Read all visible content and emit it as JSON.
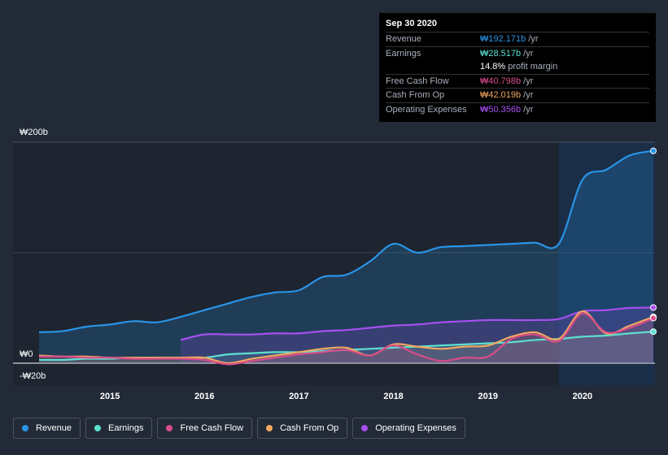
{
  "tooltip": {
    "date": "Sep 30 2020",
    "rows": [
      {
        "label": "Revenue",
        "value": "₩192.171b",
        "unit": "/yr",
        "color": "#2a94e6"
      },
      {
        "label": "Earnings",
        "value": "₩28.517b",
        "unit": "/yr",
        "color": "#5ce0d0"
      },
      {
        "label": "",
        "value": "14.8%",
        "unit": "profit margin",
        "color": "#ffffff"
      },
      {
        "label": "Free Cash Flow",
        "value": "₩40.798b",
        "unit": "/yr",
        "color": "#d94c8a"
      },
      {
        "label": "Cash From Op",
        "value": "₩42.019b",
        "unit": "/yr",
        "color": "#f0a860"
      },
      {
        "label": "Operating Expenses",
        "value": "₩50.356b",
        "unit": "/yr",
        "color": "#a64ff0"
      }
    ]
  },
  "legend": [
    {
      "label": "Revenue",
      "color": "#2a94e6"
    },
    {
      "label": "Earnings",
      "color": "#5ce0d0"
    },
    {
      "label": "Free Cash Flow",
      "color": "#d94c8a"
    },
    {
      "label": "Cash From Op",
      "color": "#f0a860"
    },
    {
      "label": "Operating Expenses",
      "color": "#a64ff0"
    }
  ],
  "chart_data": {
    "type": "line",
    "ylabels": {
      "top": "₩200b",
      "zero": "₩0",
      "bottom": "-₩20b"
    },
    "ylim": [
      -20,
      200
    ],
    "xlim": [
      2014.25,
      2020.75
    ],
    "xticks": [
      2015,
      2016,
      2017,
      2018,
      2019,
      2020
    ],
    "xtick_labels": [
      "2015",
      "2016",
      "2017",
      "2018",
      "2019",
      "2020"
    ],
    "highlight_start": 2019.75,
    "series": [
      {
        "name": "Revenue",
        "color": "#2a94e6",
        "points": [
          [
            2014.25,
            28
          ],
          [
            2014.5,
            29
          ],
          [
            2014.75,
            33
          ],
          [
            2015.0,
            35
          ],
          [
            2015.25,
            38
          ],
          [
            2015.5,
            37
          ],
          [
            2015.75,
            42
          ],
          [
            2016.0,
            48
          ],
          [
            2016.25,
            54
          ],
          [
            2016.5,
            60
          ],
          [
            2016.75,
            64
          ],
          [
            2017.0,
            66
          ],
          [
            2017.25,
            78
          ],
          [
            2017.5,
            80
          ],
          [
            2017.75,
            92
          ],
          [
            2018.0,
            108
          ],
          [
            2018.25,
            100
          ],
          [
            2018.5,
            105
          ],
          [
            2018.75,
            106
          ],
          [
            2019.0,
            107
          ],
          [
            2019.25,
            108
          ],
          [
            2019.5,
            109
          ],
          [
            2019.75,
            108
          ],
          [
            2020.0,
            166
          ],
          [
            2020.25,
            175
          ],
          [
            2020.5,
            188
          ],
          [
            2020.75,
            192.171
          ]
        ]
      },
      {
        "name": "Earnings",
        "color": "#5ce0d0",
        "points": [
          [
            2014.25,
            3
          ],
          [
            2014.5,
            3
          ],
          [
            2014.75,
            4
          ],
          [
            2015.0,
            4
          ],
          [
            2015.25,
            5
          ],
          [
            2015.5,
            5
          ],
          [
            2015.75,
            5
          ],
          [
            2016.0,
            5
          ],
          [
            2016.25,
            8
          ],
          [
            2016.5,
            9
          ],
          [
            2016.75,
            10
          ],
          [
            2017.0,
            10
          ],
          [
            2017.25,
            11
          ],
          [
            2017.5,
            12
          ],
          [
            2017.75,
            13
          ],
          [
            2018.0,
            14
          ],
          [
            2018.25,
            15
          ],
          [
            2018.5,
            16
          ],
          [
            2018.75,
            17
          ],
          [
            2019.0,
            18
          ],
          [
            2019.25,
            19
          ],
          [
            2019.5,
            21
          ],
          [
            2019.75,
            22
          ],
          [
            2020.0,
            24
          ],
          [
            2020.25,
            25
          ],
          [
            2020.5,
            27
          ],
          [
            2020.75,
            28.517
          ]
        ]
      },
      {
        "name": "Free Cash Flow",
        "color": "#d94c8a",
        "points": [
          [
            2014.25,
            6
          ],
          [
            2014.5,
            6
          ],
          [
            2014.75,
            5
          ],
          [
            2015.0,
            5
          ],
          [
            2015.25,
            4
          ],
          [
            2015.5,
            4
          ],
          [
            2015.75,
            4
          ],
          [
            2016.0,
            3
          ],
          [
            2016.25,
            -1
          ],
          [
            2016.5,
            2
          ],
          [
            2016.75,
            5
          ],
          [
            2017.0,
            8
          ],
          [
            2017.25,
            10
          ],
          [
            2017.5,
            12
          ],
          [
            2017.75,
            7
          ],
          [
            2018.0,
            16
          ],
          [
            2018.25,
            8
          ],
          [
            2018.5,
            2
          ],
          [
            2018.75,
            5
          ],
          [
            2019.0,
            6
          ],
          [
            2019.25,
            22
          ],
          [
            2019.5,
            26
          ],
          [
            2019.75,
            20
          ],
          [
            2020.0,
            45
          ],
          [
            2020.25,
            28
          ],
          [
            2020.5,
            32
          ],
          [
            2020.75,
            40.798
          ]
        ]
      },
      {
        "name": "Cash From Op",
        "color": "#f0a860",
        "points": [
          [
            2014.25,
            7
          ],
          [
            2014.5,
            6
          ],
          [
            2014.75,
            6
          ],
          [
            2015.0,
            5
          ],
          [
            2015.25,
            5
          ],
          [
            2015.5,
            5
          ],
          [
            2015.75,
            5
          ],
          [
            2016.0,
            5
          ],
          [
            2016.25,
            0
          ],
          [
            2016.5,
            4
          ],
          [
            2016.75,
            7
          ],
          [
            2017.0,
            10
          ],
          [
            2017.25,
            13
          ],
          [
            2017.5,
            14
          ],
          [
            2017.75,
            7
          ],
          [
            2018.0,
            17
          ],
          [
            2018.25,
            15
          ],
          [
            2018.5,
            13
          ],
          [
            2018.75,
            15
          ],
          [
            2019.0,
            16
          ],
          [
            2019.25,
            24
          ],
          [
            2019.5,
            28
          ],
          [
            2019.75,
            22
          ],
          [
            2020.0,
            47
          ],
          [
            2020.25,
            27
          ],
          [
            2020.5,
            34
          ],
          [
            2020.75,
            42.019
          ]
        ]
      },
      {
        "name": "Operating Expenses",
        "color": "#a64ff0",
        "points": [
          [
            2015.75,
            21
          ],
          [
            2016.0,
            26
          ],
          [
            2016.25,
            26
          ],
          [
            2016.5,
            26
          ],
          [
            2016.75,
            27
          ],
          [
            2017.0,
            27
          ],
          [
            2017.25,
            29
          ],
          [
            2017.5,
            30
          ],
          [
            2017.75,
            32
          ],
          [
            2018.0,
            34
          ],
          [
            2018.25,
            35
          ],
          [
            2018.5,
            37
          ],
          [
            2018.75,
            38
          ],
          [
            2019.0,
            39
          ],
          [
            2019.25,
            39
          ],
          [
            2019.5,
            39
          ],
          [
            2019.75,
            40
          ],
          [
            2020.0,
            47
          ],
          [
            2020.25,
            48
          ],
          [
            2020.5,
            50
          ],
          [
            2020.75,
            50.356
          ]
        ]
      }
    ]
  }
}
